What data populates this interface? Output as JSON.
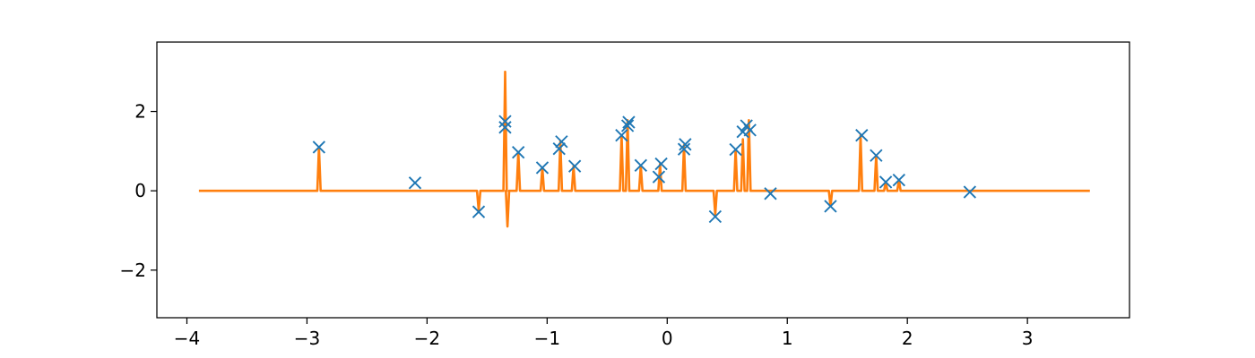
{
  "chart_data": {
    "type": "scatter",
    "title": "",
    "xlabel": "",
    "ylabel": "",
    "xlim": [
      -4.25,
      3.85
    ],
    "ylim": [
      -3.2,
      3.75
    ],
    "grid": false,
    "xticks": [
      -4,
      -3,
      -2,
      -1,
      0,
      1,
      2,
      3
    ],
    "yticks": [
      -2,
      0,
      2
    ],
    "xtick_labels": [
      "−4",
      "−3",
      "−2",
      "−1",
      "0",
      "1",
      "2",
      "3"
    ],
    "ytick_labels": [
      "−2",
      "0",
      "2"
    ],
    "colors": {
      "markers": "#1f77b4",
      "line": "#ff7f0e"
    },
    "series": [
      {
        "kind": "markers",
        "marker": "x",
        "points": [
          [
            -2.9,
            1.1
          ],
          [
            -2.1,
            0.2
          ],
          [
            -1.57,
            -0.53
          ],
          [
            -1.35,
            1.6
          ],
          [
            -1.35,
            1.75
          ],
          [
            -1.24,
            0.97
          ],
          [
            -1.04,
            0.58
          ],
          [
            -0.9,
            1.06
          ],
          [
            -0.88,
            1.24
          ],
          [
            -0.77,
            0.62
          ],
          [
            -0.38,
            1.4
          ],
          [
            -0.33,
            1.64
          ],
          [
            -0.32,
            1.73
          ],
          [
            -0.22,
            0.64
          ],
          [
            -0.07,
            0.35
          ],
          [
            -0.05,
            0.68
          ],
          [
            0.14,
            1.05
          ],
          [
            0.15,
            1.17
          ],
          [
            0.4,
            -0.65
          ],
          [
            0.57,
            1.04
          ],
          [
            0.63,
            1.49
          ],
          [
            0.66,
            1.64
          ],
          [
            0.69,
            1.53
          ],
          [
            0.86,
            -0.07
          ],
          [
            1.36,
            -0.39
          ],
          [
            1.62,
            1.4
          ],
          [
            1.74,
            0.89
          ],
          [
            1.82,
            0.22
          ],
          [
            1.93,
            0.27
          ],
          [
            2.52,
            -0.03
          ]
        ]
      },
      {
        "kind": "line",
        "x_range": [
          -3.9,
          3.52
        ],
        "baseline": 0,
        "spikes": [
          [
            -2.9,
            1.1
          ],
          [
            -1.57,
            -0.5
          ],
          [
            -1.35,
            3.0
          ],
          [
            -1.33,
            -0.9
          ],
          [
            -1.24,
            0.97
          ],
          [
            -1.04,
            0.58
          ],
          [
            -0.89,
            1.25
          ],
          [
            -0.78,
            0.62
          ],
          [
            -0.38,
            1.4
          ],
          [
            -0.33,
            1.78
          ],
          [
            -0.22,
            0.64
          ],
          [
            -0.06,
            0.68
          ],
          [
            0.14,
            1.15
          ],
          [
            0.4,
            -0.6
          ],
          [
            0.57,
            1.04
          ],
          [
            0.63,
            1.3
          ],
          [
            0.68,
            1.78
          ],
          [
            1.36,
            -0.39
          ],
          [
            1.61,
            1.4
          ],
          [
            1.74,
            0.89
          ],
          [
            1.82,
            0.22
          ],
          [
            1.93,
            0.27
          ]
        ]
      }
    ]
  }
}
